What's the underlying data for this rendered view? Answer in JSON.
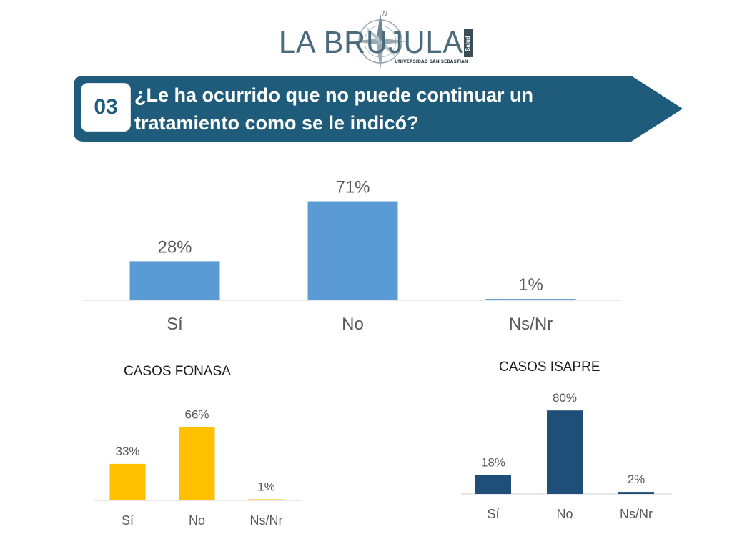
{
  "logo": {
    "text": "LA BRUJULA",
    "subtitle": "UNIVERSIDAD SAN SEBASTIAN",
    "side_text": "Salud",
    "compass_letter": "N"
  },
  "question": {
    "number": "03",
    "text": "¿Le ha ocurrido que no puede continuar un tratamiento como se le indicó?"
  },
  "colors": {
    "banner": "#1f5b7a",
    "main_bar": "#5b9bd5",
    "fonasa_bar": "#ffc000",
    "isapre_bar": "#1f4e79",
    "axis": "#d9d9d9",
    "label": "#595959"
  },
  "chart_data": [
    {
      "type": "bar",
      "title": "",
      "categories": [
        "Sí",
        "No",
        "Ns/Nr"
      ],
      "values": [
        28,
        71,
        1
      ],
      "value_labels": [
        "28%",
        "71%",
        "1%"
      ],
      "ylim": [
        0,
        100
      ],
      "grid": false,
      "legend": "none"
    },
    {
      "type": "bar",
      "title": "CASOS FONASA",
      "categories": [
        "Sí",
        "No",
        "Ns/Nr"
      ],
      "values": [
        33,
        66,
        1
      ],
      "value_labels": [
        "33%",
        "66%",
        "1%"
      ],
      "ylim": [
        0,
        100
      ],
      "grid": false,
      "legend": "none"
    },
    {
      "type": "bar",
      "title": "CASOS ISAPRE",
      "categories": [
        "Sí",
        "No",
        "Ns/Nr"
      ],
      "values": [
        18,
        80,
        2
      ],
      "value_labels": [
        "18%",
        "80%",
        "2%"
      ],
      "ylim": [
        0,
        100
      ],
      "grid": false,
      "legend": "none"
    }
  ]
}
